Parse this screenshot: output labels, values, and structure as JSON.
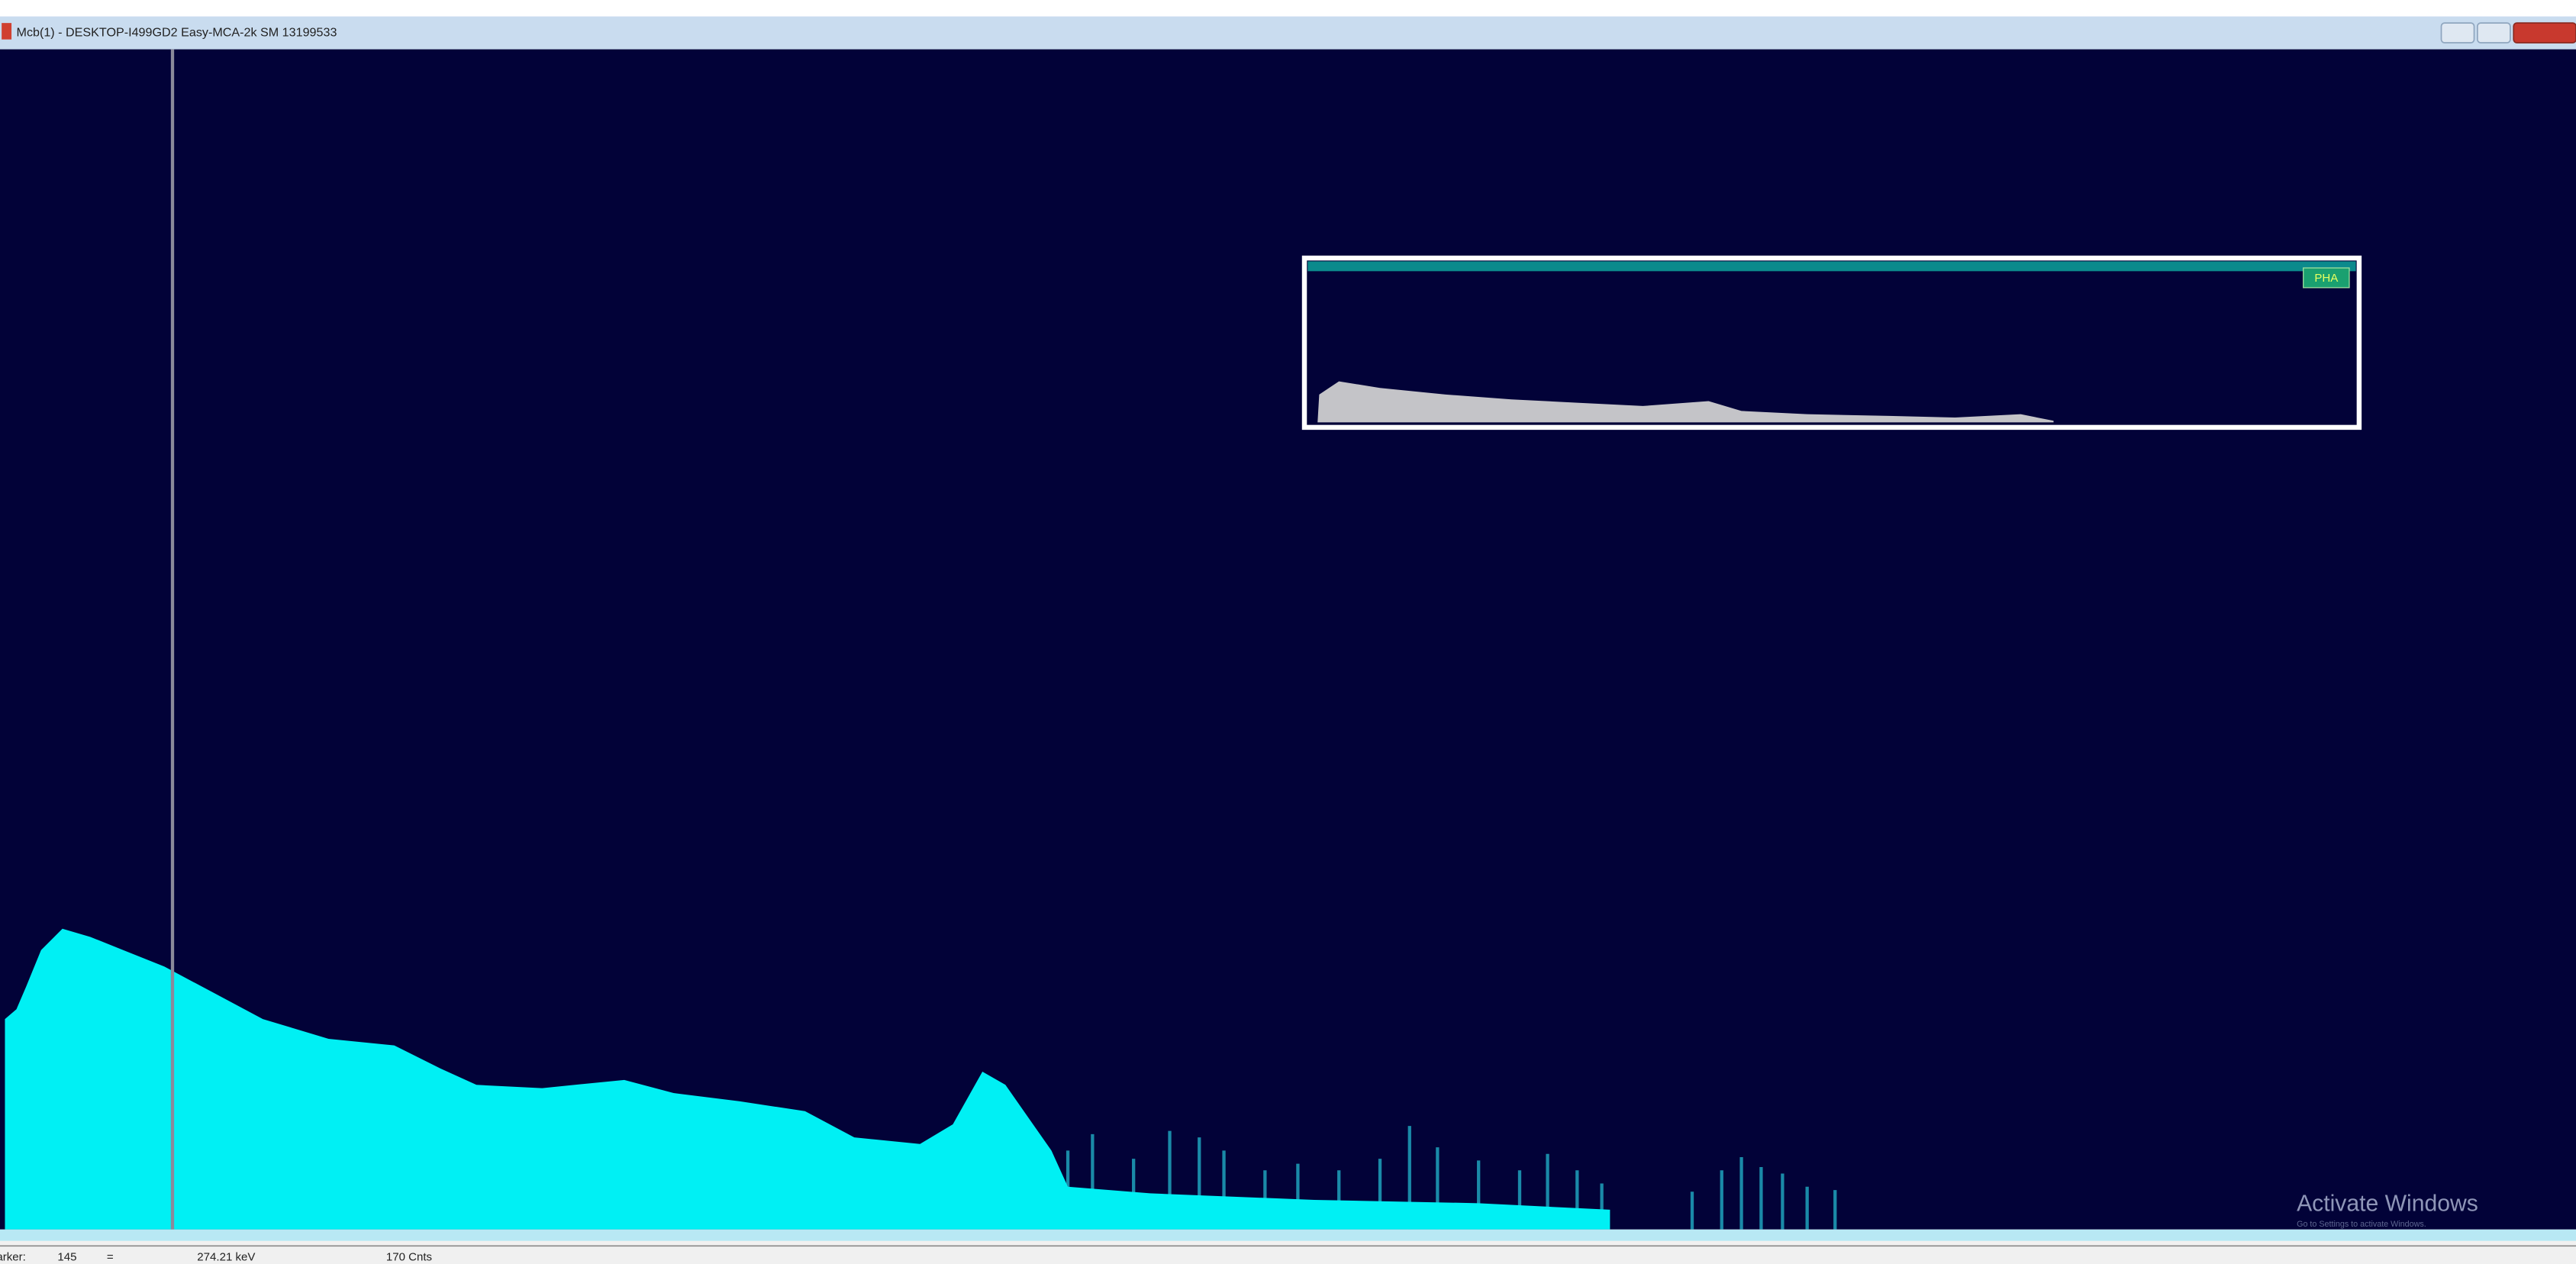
{
  "window": {
    "title": "Mcb(1) - DESKTOP-I499GD2 Easy-MCA-2k SM 13199533"
  },
  "inset": {
    "label": "PHA"
  },
  "status_bar": {
    "marker_label": "Marker:",
    "marker_channel": "145",
    "equals": "=",
    "energy": "274.21 keV",
    "counts": "170 Cnts"
  },
  "watermark": {
    "title": "Activate Windows",
    "subtitle": "Go to Settings to activate Windows."
  }
}
